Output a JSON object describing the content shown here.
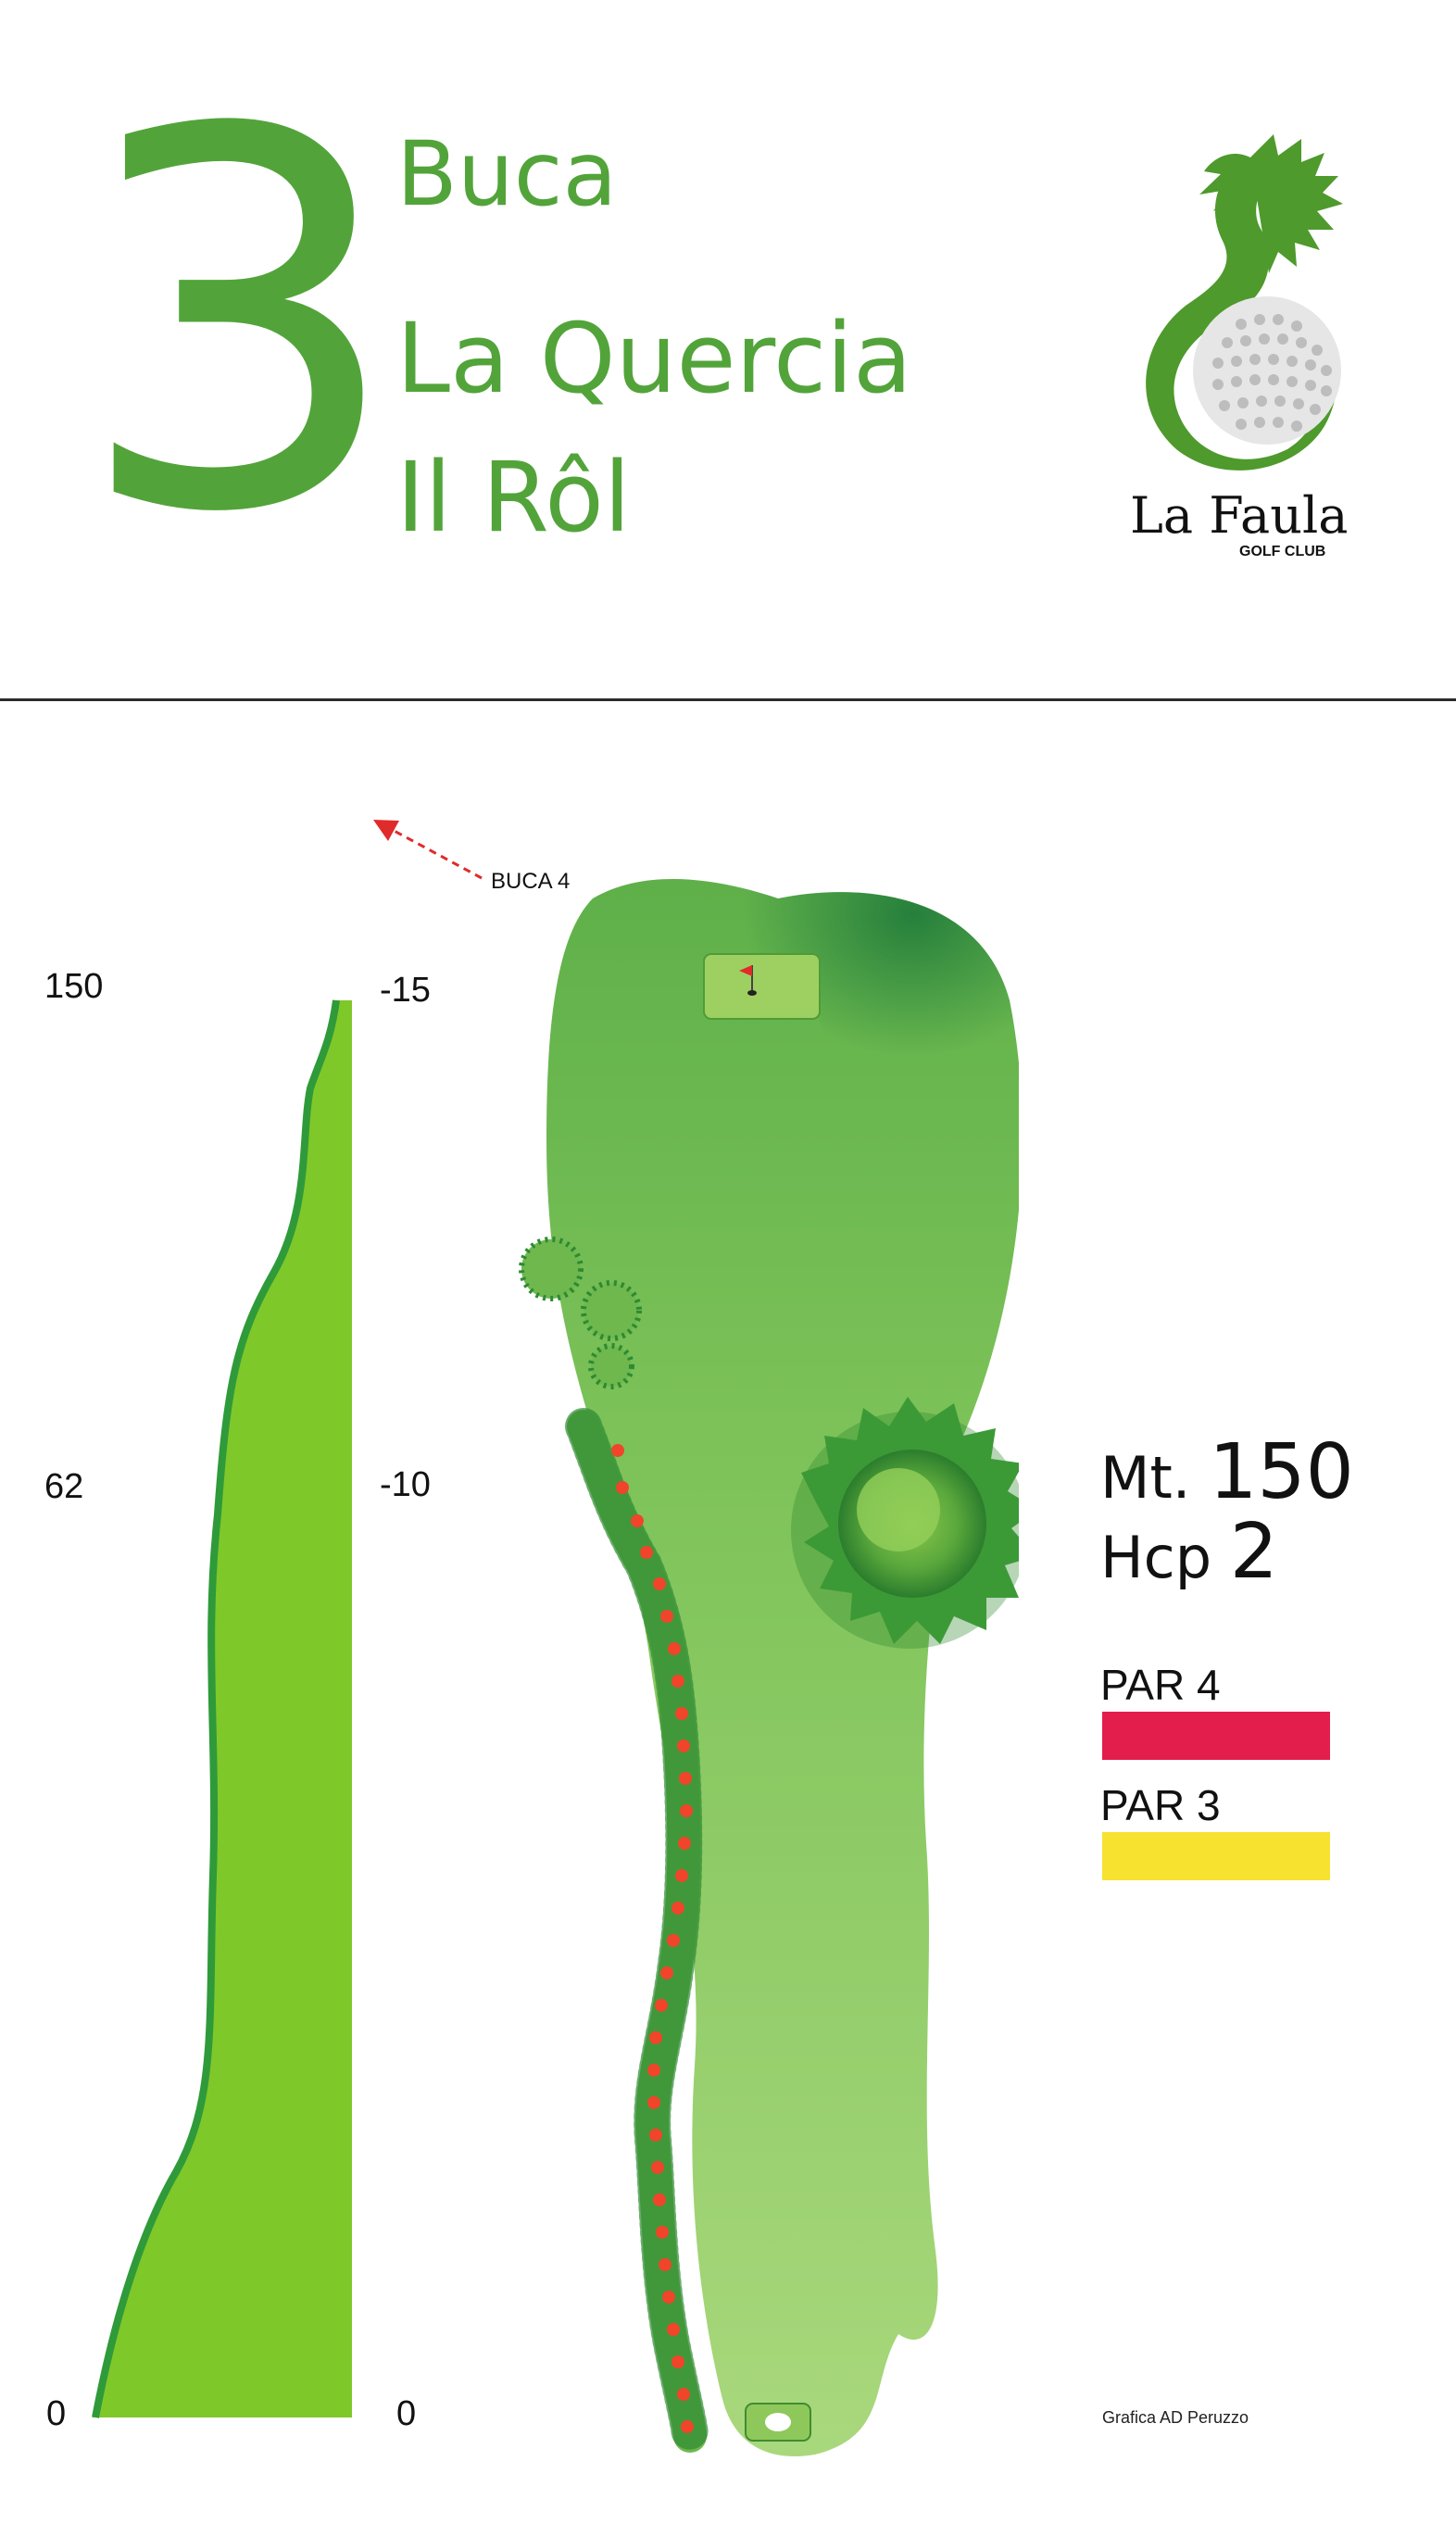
{
  "hole": {
    "number": "3",
    "label": "Buca",
    "name": "La Quercia",
    "local_name": "Il Rôl"
  },
  "logo": {
    "brand": "La Faula",
    "subtitle": "GOLF CLUB",
    "icon": "dragon-golfball-icon",
    "color": "#4e9a2c"
  },
  "profile": {
    "left_axis": [
      "150",
      "62",
      "0"
    ],
    "right_axis": [
      "-15",
      "-10",
      "0"
    ]
  },
  "next_hole_pointer": {
    "label": "BUCA 4",
    "color": "#e02b2b"
  },
  "info": {
    "distance_prefix": "Mt.",
    "distance_value": "150",
    "hcp_prefix": "Hcp",
    "hcp_value": "2"
  },
  "pars": [
    {
      "label": "PAR 4",
      "color": "#e31e4c"
    },
    {
      "label": "PAR 3",
      "color": "#f7e22f"
    }
  ],
  "credit": "Grafica AD Peruzzo",
  "colors": {
    "accent_green": "#52a43a",
    "fairway": "#8cc84b",
    "profile_fill": "#7fc82a",
    "out_of_bounds_marker": "#f0452a"
  }
}
